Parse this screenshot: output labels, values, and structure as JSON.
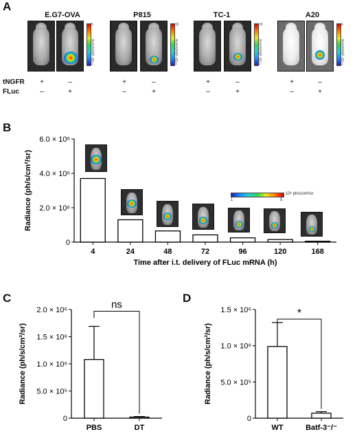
{
  "panel_a": {
    "letter": "A",
    "groups": [
      {
        "title": "E.G7-OVA",
        "colorbar_label": "10⁵ ph/s/cm²/sr",
        "colorbar_max": "5",
        "colorbar_min": "1"
      },
      {
        "title": "P815",
        "colorbar_label": "10⁵ ph/s/cm²/sr",
        "colorbar_max": "15",
        "colorbar_min": "1"
      },
      {
        "title": "TC-1",
        "colorbar_label": "10⁵ ph/s/cm²/sr",
        "colorbar_max": "15",
        "colorbar_min": "1"
      },
      {
        "title": "A20",
        "colorbar_label": "10⁵ ph/s/cm²/sr",
        "colorbar_max": "6",
        "colorbar_min": "1"
      }
    ],
    "row_labels": [
      "tNGFR",
      "FLuc"
    ],
    "tngfr_signs": [
      "+",
      "–"
    ],
    "fluc_signs": [
      "–",
      "+"
    ]
  },
  "chart_data": [
    {
      "panel": "B",
      "type": "bar",
      "categories": [
        "4",
        "24",
        "48",
        "72",
        "96",
        "120",
        "168"
      ],
      "values": [
        3700000,
        1300000,
        650000,
        420000,
        250000,
        150000,
        50000
      ],
      "xlabel": "Time after i.t. delivery of FLuc mRNA (h)",
      "ylabel": "Radiance (ph/s/cm²/sr)",
      "ylim": [
        0,
        6000000
      ],
      "yticks": [
        "0",
        "2.0 × 10⁶",
        "4.0 × 10⁶",
        "6.0 × 10⁶"
      ],
      "colorbar": {
        "label": "10⁵ ph/s/cm²/sr",
        "min": "1",
        "max": "5"
      }
    },
    {
      "panel": "C",
      "type": "bar",
      "categories": [
        "PBS",
        "DT"
      ],
      "values": [
        1080000,
        20000
      ],
      "errors": [
        610000,
        10000
      ],
      "ylabel": "Radiance (ph/s/cm²/sr)",
      "ylim": [
        0,
        2000000
      ],
      "yticks": [
        "0",
        "5.0 × 10⁵",
        "1.0 × 10⁶",
        "1.5 × 10⁶",
        "2.0 × 10⁶"
      ],
      "annotation": "ns"
    },
    {
      "panel": "D",
      "type": "bar",
      "categories": [
        "WT",
        "Batf-3⁻/⁻"
      ],
      "values": [
        990000,
        70000
      ],
      "errors": [
        330000,
        20000
      ],
      "ylabel": "Radiance (ph/s/cm²/sr)",
      "ylim": [
        0,
        1500000
      ],
      "yticks": [
        "0",
        "5.0 × 10⁵",
        "1.0 × 10⁶",
        "1.5 × 10⁶"
      ],
      "annotation": "*"
    }
  ],
  "panel_letters": {
    "b": "B",
    "c": "C",
    "d": "D"
  }
}
